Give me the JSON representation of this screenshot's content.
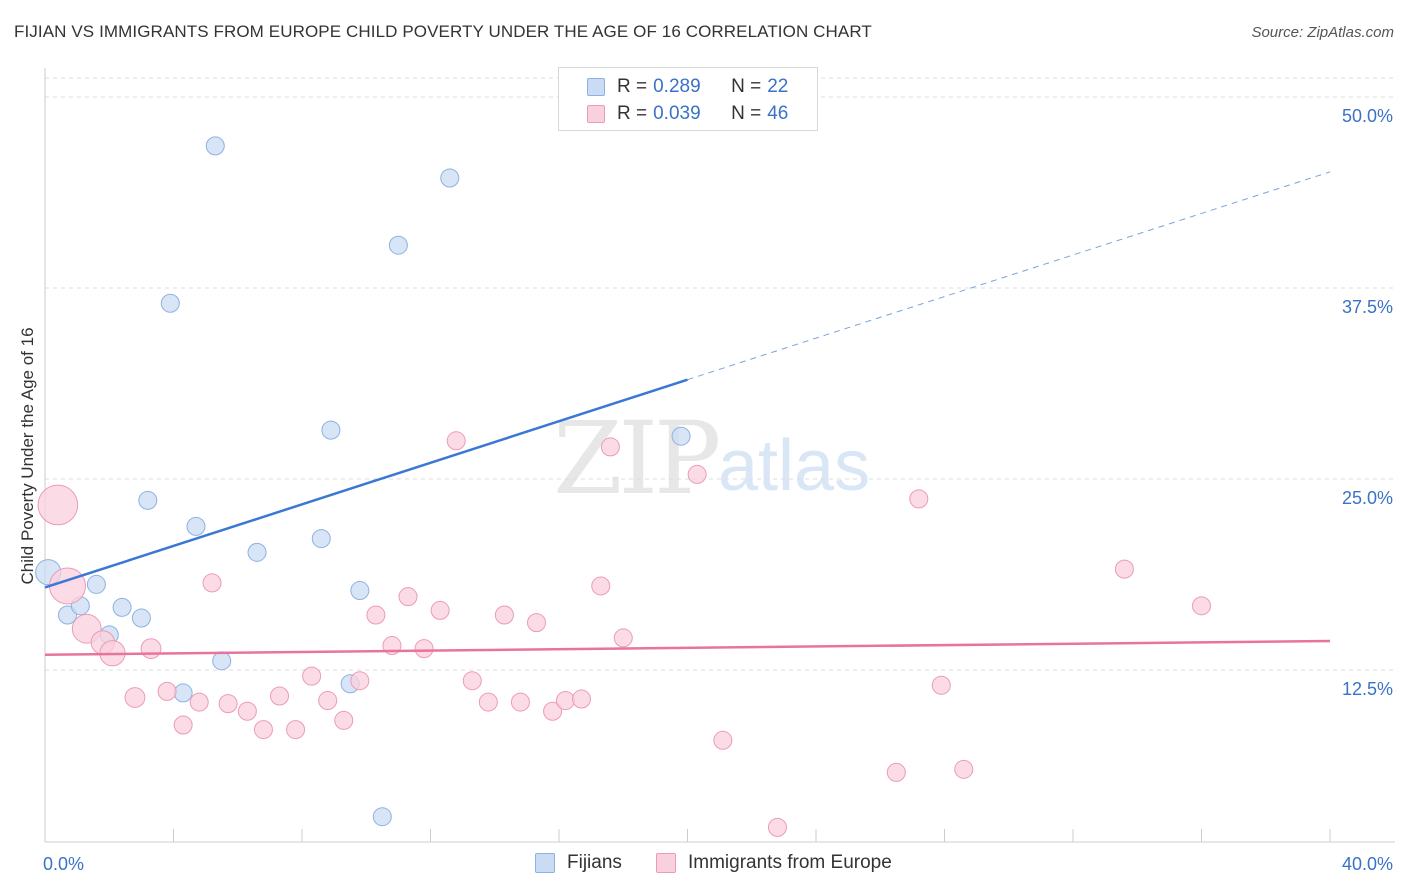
{
  "title": "FIJIAN VS IMMIGRANTS FROM EUROPE CHILD POVERTY UNDER THE AGE OF 16 CORRELATION CHART",
  "source": "Source: ZipAtlas.com",
  "watermark": {
    "zip": "ZIP",
    "atlas": "atlas"
  },
  "legend": {
    "rows": [
      {
        "r_label": "R =",
        "r_value": "0.289",
        "n_label": "N =",
        "n_value": "22",
        "color": "#a8c8f0"
      },
      {
        "r_label": "R =",
        "r_value": "0.039",
        "n_label": "N =",
        "n_value": "46",
        "color": "#f5b8ca"
      }
    ]
  },
  "bottom_legend": {
    "fijians": "Fijians",
    "immigrants": "Immigrants from Europe"
  },
  "chart_data": {
    "type": "scatter",
    "xlabel": "",
    "ylabel": "Child Poverty Under the Age of 16",
    "xlim": [
      0,
      40
    ],
    "ylim": [
      0,
      50
    ],
    "x_tick_labels": {
      "min": "0.0%",
      "max": "40.0%"
    },
    "y_ticks": [
      12.5,
      25.0,
      37.5,
      50.0
    ],
    "y_tick_labels": [
      "12.5%",
      "25.0%",
      "37.5%",
      "50.0%"
    ],
    "colors": {
      "fijians": "#5b8fd6",
      "fijians_fill": "#c9dcf4",
      "immigrants": "#e8749c",
      "immigrants_fill": "#f9d0dd",
      "axis_label": "#3a72c8"
    },
    "series": [
      {
        "name": "Fijians",
        "points": [
          {
            "x": 0.1,
            "y": 18.9,
            "s": 1.4
          },
          {
            "x": 0.7,
            "y": 16.1,
            "s": 1
          },
          {
            "x": 1.1,
            "y": 16.7,
            "s": 1
          },
          {
            "x": 1.6,
            "y": 18.1,
            "s": 1
          },
          {
            "x": 2.0,
            "y": 14.8,
            "s": 1
          },
          {
            "x": 2.4,
            "y": 16.6,
            "s": 1
          },
          {
            "x": 3.0,
            "y": 15.9,
            "s": 1
          },
          {
            "x": 3.2,
            "y": 23.6,
            "s": 1
          },
          {
            "x": 3.9,
            "y": 36.5,
            "s": 1
          },
          {
            "x": 4.3,
            "y": 11.0,
            "s": 1
          },
          {
            "x": 4.7,
            "y": 21.9,
            "s": 1
          },
          {
            "x": 5.3,
            "y": 46.8,
            "s": 1
          },
          {
            "x": 5.5,
            "y": 13.1,
            "s": 1
          },
          {
            "x": 6.6,
            "y": 20.2,
            "s": 1
          },
          {
            "x": 8.6,
            "y": 21.1,
            "s": 1
          },
          {
            "x": 8.9,
            "y": 28.2,
            "s": 1
          },
          {
            "x": 9.5,
            "y": 11.6,
            "s": 1
          },
          {
            "x": 9.8,
            "y": 17.7,
            "s": 1
          },
          {
            "x": 10.5,
            "y": 2.9,
            "s": 1
          },
          {
            "x": 11.0,
            "y": 40.3,
            "s": 1
          },
          {
            "x": 12.6,
            "y": 44.7,
            "s": 1
          },
          {
            "x": 19.8,
            "y": 27.8,
            "s": 1
          }
        ]
      },
      {
        "name": "Immigrants from Europe",
        "points": [
          {
            "x": 0.4,
            "y": 23.3,
            "s": 2.2
          },
          {
            "x": 0.7,
            "y": 18.0,
            "s": 2
          },
          {
            "x": 1.3,
            "y": 15.2,
            "s": 1.6
          },
          {
            "x": 1.8,
            "y": 14.3,
            "s": 1.3
          },
          {
            "x": 2.8,
            "y": 10.7,
            "s": 1.1
          },
          {
            "x": 2.1,
            "y": 13.6,
            "s": 1.4
          },
          {
            "x": 3.3,
            "y": 13.9,
            "s": 1.1
          },
          {
            "x": 3.8,
            "y": 11.1,
            "s": 1
          },
          {
            "x": 4.3,
            "y": 8.9,
            "s": 1
          },
          {
            "x": 4.8,
            "y": 10.4,
            "s": 1
          },
          {
            "x": 5.2,
            "y": 18.2,
            "s": 1
          },
          {
            "x": 5.7,
            "y": 10.3,
            "s": 1
          },
          {
            "x": 6.3,
            "y": 9.8,
            "s": 1
          },
          {
            "x": 6.8,
            "y": 8.6,
            "s": 1
          },
          {
            "x": 7.3,
            "y": 10.8,
            "s": 1
          },
          {
            "x": 7.8,
            "y": 8.6,
            "s": 1
          },
          {
            "x": 8.3,
            "y": 12.1,
            "s": 1
          },
          {
            "x": 8.8,
            "y": 10.5,
            "s": 1
          },
          {
            "x": 9.3,
            "y": 9.2,
            "s": 1
          },
          {
            "x": 9.8,
            "y": 11.8,
            "s": 1
          },
          {
            "x": 10.3,
            "y": 16.1,
            "s": 1
          },
          {
            "x": 10.8,
            "y": 14.1,
            "s": 1
          },
          {
            "x": 11.3,
            "y": 17.3,
            "s": 1
          },
          {
            "x": 11.8,
            "y": 13.9,
            "s": 1
          },
          {
            "x": 12.3,
            "y": 16.4,
            "s": 1
          },
          {
            "x": 12.8,
            "y": 27.5,
            "s": 1
          },
          {
            "x": 13.3,
            "y": 11.8,
            "s": 1
          },
          {
            "x": 13.8,
            "y": 10.4,
            "s": 1
          },
          {
            "x": 14.3,
            "y": 16.1,
            "s": 1
          },
          {
            "x": 14.8,
            "y": 10.4,
            "s": 1
          },
          {
            "x": 15.3,
            "y": 15.6,
            "s": 1
          },
          {
            "x": 15.8,
            "y": 9.8,
            "s": 1
          },
          {
            "x": 16.2,
            "y": 10.5,
            "s": 1
          },
          {
            "x": 16.7,
            "y": 10.6,
            "s": 1
          },
          {
            "x": 17.3,
            "y": 18.0,
            "s": 1
          },
          {
            "x": 17.6,
            "y": 27.1,
            "s": 1
          },
          {
            "x": 18.0,
            "y": 14.6,
            "s": 1
          },
          {
            "x": 20.3,
            "y": 25.3,
            "s": 1
          },
          {
            "x": 21.1,
            "y": 7.9,
            "s": 1
          },
          {
            "x": 22.8,
            "y": 2.2,
            "s": 1
          },
          {
            "x": 26.5,
            "y": 5.8,
            "s": 1
          },
          {
            "x": 27.2,
            "y": 23.7,
            "s": 1
          },
          {
            "x": 27.9,
            "y": 11.5,
            "s": 1
          },
          {
            "x": 28.6,
            "y": 6.0,
            "s": 1
          },
          {
            "x": 33.6,
            "y": 19.1,
            "s": 1
          },
          {
            "x": 36.0,
            "y": 16.7,
            "s": 1
          }
        ]
      }
    ],
    "trend_lines": [
      {
        "name": "Fijians",
        "x0": 0,
        "y0": 17.9,
        "x1": 20.0,
        "y1": 31.5,
        "x_dash_end": 40,
        "y_dash_end": 45.1
      },
      {
        "name": "Immigrants from Europe",
        "x0": 0,
        "y0": 13.5,
        "x1": 40,
        "y1": 14.4
      }
    ]
  }
}
